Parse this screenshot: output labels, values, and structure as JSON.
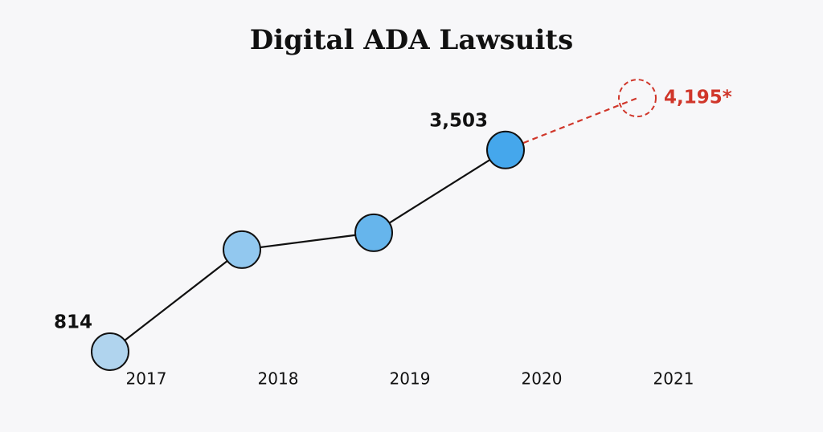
{
  "chart_data": {
    "type": "line",
    "title": "Digital ADA Lawsuits",
    "categories": [
      "2017",
      "2018",
      "2019",
      "2020",
      "2021"
    ],
    "ylim": [
      0,
      4860
    ],
    "series": [
      {
        "color": "#111111",
        "dashed": false,
        "values": [
          814,
          2174,
          2399,
          3503,
          null
        ],
        "value_labels": [
          "814",
          null,
          null,
          "3,503",
          null
        ],
        "point_colors": [
          "#b0d4ee",
          "#92c8ef",
          "#66b5ec",
          "#45a7ec",
          null
        ]
      },
      {
        "color": "#d0362a",
        "dashed": true,
        "values": [
          null,
          null,
          null,
          3503,
          4195
        ],
        "value_labels": [
          null,
          null,
          null,
          null,
          "4,195*"
        ],
        "point_colors": [
          null,
          null,
          null,
          null,
          "#d0362a"
        ]
      }
    ]
  }
}
